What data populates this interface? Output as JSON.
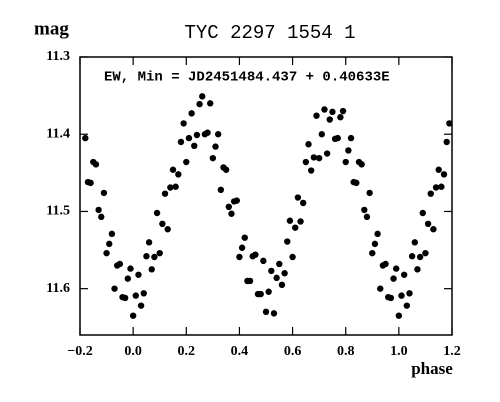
{
  "chart_data": {
    "type": "scatter",
    "title": "TYC 2297 1554 1",
    "y_label": "mag",
    "x_label": "phase",
    "annotation": "EW, Min = JD2451484.437 + 0.40633E",
    "color": "#000000",
    "xlim": [
      -0.2,
      1.2
    ],
    "ylim": [
      11.66,
      11.3
    ],
    "xticks": [
      {
        "value": -0.2,
        "label": "−0.2"
      },
      {
        "value": 0,
        "label": "0.0"
      },
      0.2,
      0.4,
      0.6,
      0.8,
      {
        "value": 1,
        "label": "1.0"
      },
      1.2
    ],
    "yticks": [
      11.3,
      11.4,
      11.5,
      11.6
    ],
    "x": [
      -0.18,
      -0.17,
      -0.16,
      -0.15,
      -0.14,
      -0.13,
      -0.12,
      -0.11,
      -0.1,
      -0.09,
      -0.08,
      -0.07,
      -0.06,
      -0.05,
      -0.04,
      -0.03,
      -0.02,
      -0.01,
      0,
      0.01,
      0.02,
      0.03,
      0.04,
      0.05,
      0.06,
      0.07,
      0.08,
      0.09,
      0.1,
      0.11,
      0.12,
      0.13,
      0.14,
      0.15,
      0.16,
      0.17,
      0.18,
      0.19,
      0.2,
      0.21,
      0.22,
      0.23,
      0.24,
      0.25,
      0.26,
      0.27,
      0.28,
      0.29,
      0.3,
      0.31,
      0.32,
      0.33,
      0.34,
      0.35,
      0.36,
      0.37,
      0.38,
      0.39,
      0.4,
      0.41,
      0.42,
      0.43,
      0.44,
      0.45,
      0.46,
      0.47,
      0.48,
      0.49,
      0.5,
      0.51,
      0.52,
      0.53,
      0.54,
      0.55,
      0.56,
      0.57,
      0.58,
      0.59,
      0.6,
      0.61,
      0.62,
      0.63,
      0.64,
      0.65,
      0.66,
      0.67,
      0.68,
      0.69,
      0.7,
      0.71,
      0.72,
      0.73,
      0.74,
      0.75,
      0.76,
      0.77,
      0.78,
      0.79,
      0.8,
      0.81,
      0.82,
      0.83,
      0.84,
      0.85,
      0.86,
      0.87,
      0.88,
      0.89,
      0.9,
      0.91,
      0.92,
      0.93,
      0.94,
      0.95,
      0.96,
      0.97,
      0.98,
      0.99,
      1,
      1.01,
      1.02,
      1.03,
      1.04,
      1.05,
      1.06,
      1.07,
      1.08,
      1.09,
      1.1,
      1.11,
      1.12,
      1.13,
      1.14,
      1.15,
      1.16,
      1.17,
      1.18,
      1.19
    ],
    "values": [
      11.405,
      11.462,
      11.463,
      11.436,
      11.439,
      11.498,
      11.507,
      11.476,
      11.554,
      11.542,
      11.529,
      11.6,
      11.57,
      11.568,
      11.611,
      11.612,
      11.587,
      11.574,
      11.635,
      11.609,
      11.582,
      11.622,
      11.606,
      11.558,
      11.54,
      11.575,
      11.559,
      11.502,
      11.554,
      11.516,
      11.477,
      11.523,
      11.469,
      11.446,
      11.468,
      11.452,
      11.41,
      11.386,
      11.436,
      11.405,
      11.373,
      11.415,
      11.401,
      11.361,
      11.351,
      11.4,
      11.398,
      11.36,
      11.431,
      11.416,
      11.4,
      11.472,
      11.443,
      11.446,
      11.494,
      11.503,
      11.487,
      11.486,
      11.559,
      11.547,
      11.534,
      11.59,
      11.59,
      11.558,
      11.556,
      11.607,
      11.607,
      11.564,
      11.63,
      11.604,
      11.577,
      11.632,
      11.586,
      11.568,
      11.595,
      11.58,
      11.539,
      11.512,
      11.559,
      11.521,
      11.482,
      11.513,
      11.489,
      11.436,
      11.413,
      11.447,
      11.43,
      11.376,
      11.431,
      11.4,
      11.368,
      11.425,
      11.381,
      11.371,
      11.406,
      11.405,
      11.378,
      11.37,
      11.436,
      11.421,
      11.405,
      11.462,
      11.463,
      11.436,
      11.439,
      11.498,
      11.507,
      11.476,
      11.554,
      11.542,
      11.529,
      11.6,
      11.57,
      11.568,
      11.611,
      11.612,
      11.587,
      11.574,
      11.635,
      11.609,
      11.582,
      11.622,
      11.606,
      11.558,
      11.54,
      11.575,
      11.559,
      11.502,
      11.554,
      11.516,
      11.477,
      11.523,
      11.469,
      11.446,
      11.468,
      11.452,
      11.41,
      11.386
    ]
  }
}
